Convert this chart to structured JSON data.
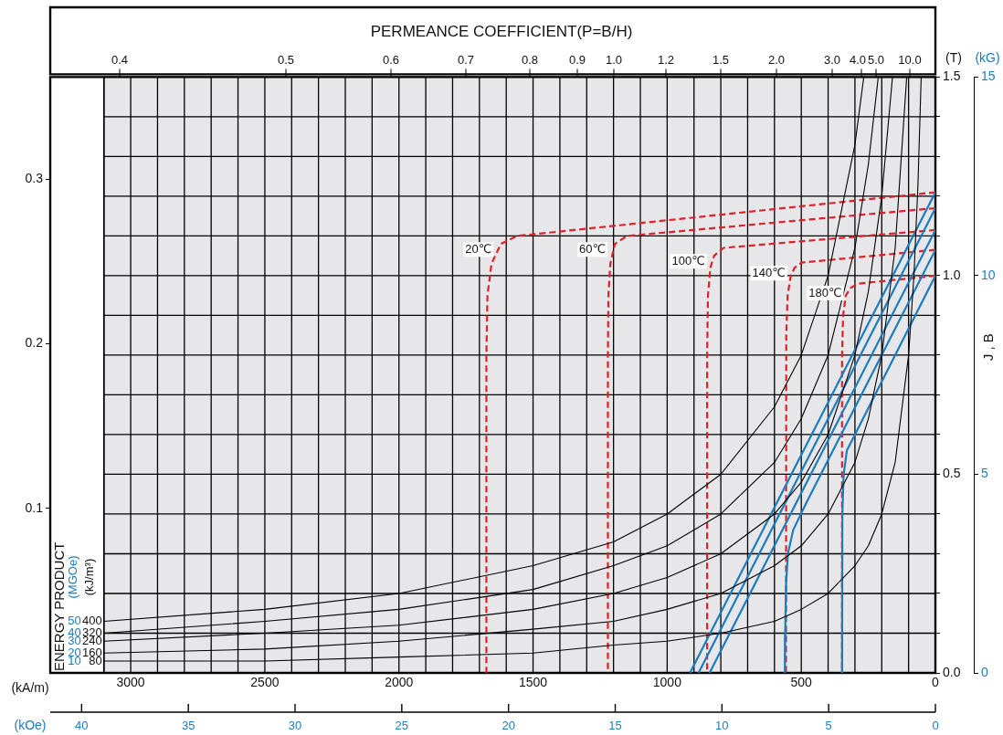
{
  "chart_data": {
    "type": "line",
    "title": "PERMEANCE COEFFICIENT(P=B/H)",
    "xlabel": "(kA/m)",
    "x2label": "(kOe)",
    "ylabel": "(T)",
    "y2label": "(kG)",
    "annotations": [
      "ENERGY PRODUCT",
      "(MGOe)",
      "(kJ/m³)",
      "J , B",
      "50",
      "40",
      "30",
      "20",
      "10",
      "0.4",
      "0.5",
      "0.6",
      "0.7",
      "0.8",
      "0.9",
      "1.0",
      "1.2",
      "1.5",
      "2.0",
      "3.0",
      "4.0",
      "5.0",
      "10.0"
    ],
    "xlim": [
      3300,
      0
    ],
    "xticks": [
      0,
      {
        "value": 100,
        "label": null
      },
      {
        "value": 200,
        "label": null
      },
      {
        "value": 300,
        "label": null
      },
      {
        "value": 400,
        "label": null
      },
      500,
      {
        "value": 600,
        "label": null
      },
      {
        "value": 700,
        "label": null
      },
      {
        "value": 800,
        "label": null
      },
      {
        "value": 900,
        "label": null
      },
      1000,
      {
        "value": 1100,
        "label": null
      },
      {
        "value": 1200,
        "label": null
      },
      {
        "value": 1300,
        "label": null
      },
      {
        "value": 1400,
        "label": null
      },
      1500,
      {
        "value": 1600,
        "label": null
      },
      {
        "value": 1700,
        "label": null
      },
      {
        "value": 1800,
        "label": null
      },
      {
        "value": 1900,
        "label": null
      },
      2000,
      {
        "value": 2100,
        "label": null
      },
      {
        "value": 2200,
        "label": null
      },
      {
        "value": 2300,
        "label": null
      },
      {
        "value": 2400,
        "label": null
      },
      2500,
      {
        "value": 2600,
        "label": null
      },
      {
        "value": 2700,
        "label": null
      },
      {
        "value": 2800,
        "label": null
      },
      {
        "value": 2900,
        "label": null
      },
      3000,
      {
        "value": 3100,
        "label": null
      }
    ],
    "x2lim": [
      41.47,
      0
    ],
    "x2ticks": [
      0,
      5,
      10,
      15,
      20,
      25,
      30,
      35,
      40
    ],
    "ylim": [
      0,
      1.5
    ],
    "yticks": [
      {
        "value": 0,
        "label": "0.0"
      },
      {
        "value": 0.1,
        "label": null
      },
      {
        "value": 0.2,
        "label": null
      },
      {
        "value": 0.3,
        "label": null
      },
      {
        "value": 0.4,
        "label": null
      },
      {
        "value": 0.5,
        "label": "0.5"
      },
      {
        "value": 0.6,
        "label": null
      },
      {
        "value": 0.7,
        "label": null
      },
      {
        "value": 0.8,
        "label": null
      },
      {
        "value": 0.9,
        "label": null
      },
      {
        "value": 1.0,
        "label": "1.0"
      },
      {
        "value": 1.1,
        "label": null
      },
      {
        "value": 1.2,
        "label": null
      },
      {
        "value": 1.3,
        "label": null
      },
      {
        "value": 1.4,
        "label": null
      },
      {
        "value": 1.5,
        "label": "1.5"
      }
    ],
    "y2lim": [
      0,
      15
    ],
    "y2ticks": [
      0,
      5,
      10,
      15
    ],
    "y3lim": [
      0,
      0.362
    ],
    "y3ticks": [
      0.1,
      0.2,
      0.3
    ],
    "grid": true,
    "legend": false,
    "marker": "none",
    "series": [
      {
        "name": "400",
        "color": "#000000",
        "line_style": "solid",
        "x": [
          3100,
          2500,
          2000,
          1500,
          1200,
          1000,
          800,
          600,
          500,
          400,
          300,
          267
        ],
        "values": [
          0.13,
          0.16,
          0.2,
          0.27,
          0.33,
          0.4,
          0.5,
          0.67,
          0.8,
          1.0,
          1.33,
          1.5
        ]
      },
      {
        "name": "320",
        "color": "#000000",
        "line_style": "solid",
        "x": [
          3100,
          2500,
          2000,
          1500,
          1200,
          1000,
          800,
          600,
          500,
          400,
          300,
          250,
          213
        ],
        "values": [
          0.1,
          0.13,
          0.16,
          0.21,
          0.27,
          0.32,
          0.4,
          0.53,
          0.64,
          0.8,
          1.07,
          1.28,
          1.5
        ]
      },
      {
        "name": "240",
        "color": "#000000",
        "line_style": "solid",
        "x": [
          3100,
          2500,
          2000,
          1500,
          1200,
          1000,
          800,
          600,
          500,
          400,
          300,
          250,
          200,
          160
        ],
        "values": [
          0.08,
          0.1,
          0.12,
          0.16,
          0.2,
          0.24,
          0.3,
          0.4,
          0.48,
          0.6,
          0.8,
          0.96,
          1.2,
          1.5
        ]
      },
      {
        "name": "160",
        "color": "#000000",
        "line_style": "solid",
        "x": [
          3100,
          2500,
          2000,
          1500,
          1200,
          1000,
          800,
          600,
          500,
          400,
          300,
          250,
          200,
          150,
          107
        ],
        "values": [
          0.05,
          0.06,
          0.08,
          0.11,
          0.13,
          0.16,
          0.2,
          0.27,
          0.32,
          0.4,
          0.53,
          0.64,
          0.8,
          1.07,
          1.5
        ]
      },
      {
        "name": "80",
        "color": "#000000",
        "line_style": "solid",
        "x": [
          3100,
          2500,
          2000,
          1500,
          1200,
          1000,
          800,
          600,
          500,
          400,
          300,
          250,
          200,
          150,
          100,
          80,
          65,
          53
        ],
        "values": [
          0.03,
          0.03,
          0.04,
          0.05,
          0.07,
          0.08,
          0.1,
          0.13,
          0.16,
          0.2,
          0.27,
          0.32,
          0.4,
          0.53,
          0.8,
          1.0,
          1.23,
          1.5
        ]
      },
      {
        "color": "#1a7cc1",
        "line_style": "solid",
        "x": [
          0,
          915
        ],
        "values": [
          1.21,
          0
        ]
      },
      {
        "color": "#1a7cc1",
        "line_style": "solid",
        "x": [
          0,
          883
        ],
        "values": [
          1.17,
          0
        ]
      },
      {
        "color": "#1a7cc1",
        "line_style": "solid",
        "x": [
          0,
          842
        ],
        "values": [
          1.115,
          0
        ]
      },
      {
        "color": "#1a7cc1",
        "line_style": "solid",
        "x": [
          0,
          480,
          530,
          550,
          557,
          560,
          561
        ],
        "values": [
          1.065,
          0.43,
          0.36,
          0.3,
          0.22,
          0.1,
          0
        ]
      },
      {
        "color": "#1a7cc1",
        "line_style": "solid",
        "x": [
          0,
          300,
          330,
          342,
          347,
          348
        ],
        "values": [
          1.0,
          0.6,
          0.56,
          0.5,
          0.4,
          0
        ]
      },
      {
        "name": "20℃",
        "color": "#e0202a",
        "line_style": "dashed",
        "x": [
          0,
          1560,
          1620,
          1655,
          1670,
          1674,
          1674
        ],
        "values": [
          1.21,
          1.1,
          1.08,
          1.03,
          0.95,
          0.8,
          0
        ]
      },
      {
        "name": "60℃",
        "color": "#e0202a",
        "line_style": "dashed",
        "x": [
          0,
          1150,
          1195,
          1212,
          1219,
          1221,
          1221
        ],
        "values": [
          1.17,
          1.1,
          1.08,
          1.03,
          0.95,
          0.8,
          0
        ]
      },
      {
        "name": "100℃",
        "color": "#e0202a",
        "line_style": "dashed",
        "x": [
          0,
          790,
          825,
          839,
          848,
          851,
          851
        ],
        "values": [
          1.115,
          1.07,
          1.05,
          1.02,
          0.95,
          0.8,
          0
        ]
      },
      {
        "name": "140℃",
        "color": "#e0202a",
        "line_style": "dashed",
        "x": [
          0,
          498,
          525,
          539,
          551,
          556,
          557
        ],
        "values": [
          1.065,
          1.033,
          1.02,
          1.0,
          0.95,
          0.85,
          0
        ]
      },
      {
        "name": "180℃",
        "color": "#e0202a",
        "line_style": "dashed",
        "x": [
          0,
          286,
          315,
          334,
          344,
          348,
          348
        ],
        "values": [
          1.0,
          0.98,
          0.97,
          0.95,
          0.9,
          0.8,
          0
        ]
      }
    ]
  }
}
